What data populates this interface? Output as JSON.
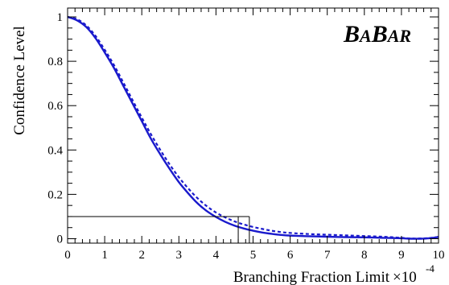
{
  "chart_data": {
    "type": "line",
    "title": "",
    "xlabel": "Branching Fraction Limit",
    "xlabel_multiplier": "×10",
    "xlabel_exponent": "-4",
    "ylabel": "Confidence Level",
    "xlim": [
      0,
      10
    ],
    "ylim": [
      -0.02,
      1.04
    ],
    "x_ticks": [
      0,
      1,
      2,
      3,
      4,
      5,
      6,
      7,
      8,
      9,
      10
    ],
    "x_tick_labels": [
      "0",
      "1",
      "2",
      "3",
      "4",
      "5",
      "6",
      "7",
      "8",
      "9",
      "10"
    ],
    "y_ticks": [
      0,
      0.2,
      0.4,
      0.6,
      0.8,
      1
    ],
    "y_tick_labels": [
      "0",
      "0.2",
      "0.4",
      "0.6",
      "0.8",
      "1"
    ],
    "grid": false,
    "logo": {
      "letters": [
        {
          "text": "B",
          "size": "large"
        },
        {
          "text": "A",
          "size": "small"
        },
        {
          "text": "B",
          "size": "large"
        },
        {
          "text": "AR",
          "size": "small"
        }
      ]
    },
    "series": [
      {
        "style": "solid",
        "color": "#1a1acc",
        "x": [
          0,
          0.25,
          0.5,
          0.75,
          1,
          1.25,
          1.5,
          1.75,
          2,
          2.25,
          2.5,
          2.75,
          3,
          3.25,
          3.5,
          3.75,
          4,
          4.25,
          4.5,
          4.75,
          5,
          5.25,
          5.5,
          5.75,
          6,
          6.5,
          7,
          7.5,
          8,
          8.5,
          9,
          9.25,
          9.5,
          9.75,
          10
        ],
        "y": [
          1.0,
          0.985,
          0.955,
          0.905,
          0.84,
          0.77,
          0.69,
          0.61,
          0.53,
          0.45,
          0.38,
          0.315,
          0.255,
          0.205,
          0.16,
          0.125,
          0.098,
          0.076,
          0.059,
          0.046,
          0.036,
          0.028,
          0.022,
          0.017,
          0.014,
          0.011,
          0.009,
          0.007,
          0.006,
          0.004,
          0.002,
          0.0,
          0.0,
          0.002,
          0.008
        ]
      },
      {
        "style": "dashed",
        "color": "#1a1acc",
        "x": [
          0,
          0.25,
          0.5,
          0.75,
          1,
          1.25,
          1.5,
          1.75,
          2,
          2.25,
          2.5,
          2.75,
          3,
          3.25,
          3.5,
          3.75,
          4,
          4.25,
          4.5,
          4.75,
          5,
          5.25,
          5.5,
          5.75,
          6,
          6.5,
          7,
          7.5,
          8,
          8.5,
          9,
          9.25,
          9.5,
          9.75,
          10
        ],
        "y": [
          1.0,
          0.99,
          0.962,
          0.915,
          0.852,
          0.783,
          0.705,
          0.625,
          0.546,
          0.47,
          0.4,
          0.335,
          0.277,
          0.227,
          0.183,
          0.147,
          0.118,
          0.096,
          0.078,
          0.064,
          0.053,
          0.044,
          0.036,
          0.03,
          0.026,
          0.021,
          0.018,
          0.015,
          0.012,
          0.009,
          0.004,
          0.001,
          0.001,
          0.003,
          0.008
        ]
      }
    ],
    "annotations": {
      "cl_level": 0.1,
      "limits": [
        4.6,
        4.9
      ]
    }
  }
}
